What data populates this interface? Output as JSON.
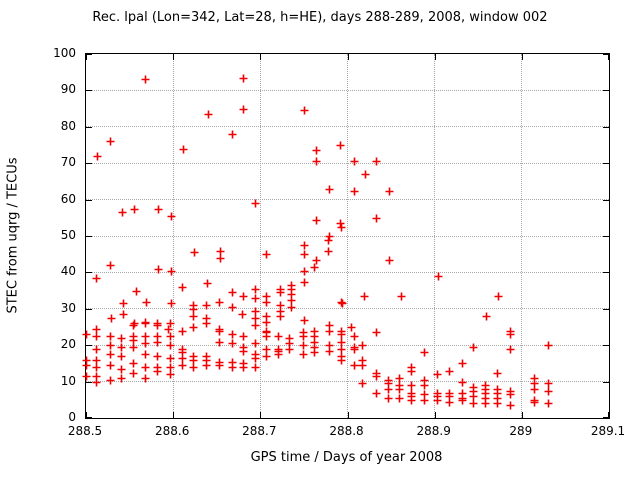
{
  "title": "Rec. lpal (Lon=342, Lat=28, h=HE), days 288-289, 2008, window 002",
  "chart_data": {
    "type": "scatter",
    "title": "Rec. lpal (Lon=342, Lat=28, h=HE), days 288-289, 2008, window 002",
    "xlabel": "GPS time / Days of year 2008",
    "ylabel": "STEC from uqrg / TECUs",
    "xlim": [
      288.5,
      289.1
    ],
    "ylim": [
      0,
      100
    ],
    "xticks": [
      288.5,
      288.6,
      288.7,
      288.8,
      288.9,
      289.0,
      289.1
    ],
    "xtick_labels": [
      "288.5",
      "288.6",
      "288.7",
      "288.8",
      "288.9",
      "289",
      "289.1"
    ],
    "yticks": [
      0,
      10,
      20,
      30,
      40,
      50,
      60,
      70,
      80,
      90,
      100
    ],
    "ytick_labels": [
      "0",
      "10",
      "20",
      "30",
      "40",
      "50",
      "60",
      "70",
      "80",
      "90",
      "100"
    ],
    "grid": true,
    "legend": false,
    "marker_shape": "plus",
    "marker_color": "#f00000",
    "grid_color": "#a8a8a8",
    "border_color": "#000000",
    "series": [
      {
        "name": "STEC",
        "points": [
          [
            288.568,
            93
          ],
          [
            288.68,
            93.5
          ],
          [
            288.75,
            84.5
          ],
          [
            288.68,
            85
          ],
          [
            288.64,
            83.5
          ],
          [
            288.667,
            78
          ],
          [
            288.528,
            76
          ],
          [
            288.611,
            74
          ],
          [
            288.513,
            72
          ],
          [
            288.791,
            75
          ],
          [
            288.764,
            73.5
          ],
          [
            288.764,
            70.5
          ],
          [
            288.807,
            70.5
          ],
          [
            288.833,
            70.5
          ],
          [
            288.82,
            67
          ],
          [
            288.779,
            63
          ],
          [
            288.807,
            62.5
          ],
          [
            288.848,
            62.5
          ],
          [
            288.541,
            56.5
          ],
          [
            288.555,
            57.5
          ],
          [
            288.583,
            57.5
          ],
          [
            288.597,
            55.5
          ],
          [
            288.694,
            59
          ],
          [
            288.764,
            54.5
          ],
          [
            288.791,
            53.5
          ],
          [
            288.792,
            52.5
          ],
          [
            288.833,
            55
          ],
          [
            288.779,
            50
          ],
          [
            288.75,
            47.5
          ],
          [
            288.75,
            45
          ],
          [
            288.707,
            45
          ],
          [
            288.848,
            43.5
          ],
          [
            288.764,
            43.5
          ],
          [
            288.778,
            49
          ],
          [
            288.778,
            46
          ],
          [
            288.761,
            41.5
          ],
          [
            288.75,
            40.5
          ],
          [
            288.75,
            37.5
          ],
          [
            288.624,
            45.5
          ],
          [
            288.654,
            46
          ],
          [
            288.654,
            44
          ],
          [
            288.528,
            42
          ],
          [
            288.511,
            38.5
          ],
          [
            288.583,
            41
          ],
          [
            288.597,
            40.5
          ],
          [
            288.557,
            35
          ],
          [
            288.61,
            36
          ],
          [
            288.639,
            37
          ],
          [
            288.542,
            31.5
          ],
          [
            288.569,
            32
          ],
          [
            288.597,
            31.5
          ],
          [
            288.542,
            28.5
          ],
          [
            288.529,
            27.5
          ],
          [
            288.555,
            26
          ],
          [
            288.568,
            26.5
          ],
          [
            288.581,
            26
          ],
          [
            288.594,
            24.5
          ],
          [
            288.623,
            31
          ],
          [
            288.623,
            30
          ],
          [
            288.638,
            31
          ],
          [
            288.653,
            32
          ],
          [
            288.667,
            34.5
          ],
          [
            288.68,
            33.5
          ],
          [
            288.694,
            35.5
          ],
          [
            288.694,
            33
          ],
          [
            288.667,
            30.5
          ],
          [
            288.679,
            28.5
          ],
          [
            288.694,
            29.5
          ],
          [
            288.694,
            27.5
          ],
          [
            288.623,
            28
          ],
          [
            288.638,
            27.5
          ],
          [
            288.904,
            39
          ],
          [
            288.973,
            33.5
          ],
          [
            288.959,
            28
          ],
          [
            288.735,
            36.5
          ],
          [
            288.735,
            35.5
          ],
          [
            288.735,
            34
          ],
          [
            288.735,
            32.5
          ],
          [
            288.722,
            35.5
          ],
          [
            288.722,
            34.5
          ],
          [
            288.706,
            33.5
          ],
          [
            288.706,
            32
          ],
          [
            288.722,
            31
          ],
          [
            288.722,
            29.5
          ],
          [
            288.735,
            30.5
          ],
          [
            288.792,
            32
          ],
          [
            288.794,
            31.5
          ],
          [
            288.819,
            33.5
          ],
          [
            288.861,
            33.5
          ],
          [
            288.706,
            28
          ],
          [
            288.722,
            28
          ],
          [
            288.706,
            26.5
          ],
          [
            288.75,
            27
          ],
          [
            288.804,
            25
          ],
          [
            288.5,
            23
          ],
          [
            288.5,
            16
          ],
          [
            288.5,
            14.5
          ],
          [
            288.5,
            11.5
          ],
          [
            288.511,
            24.5
          ],
          [
            288.511,
            22.5
          ],
          [
            288.511,
            19
          ],
          [
            288.511,
            16
          ],
          [
            288.511,
            14
          ],
          [
            288.511,
            11.5
          ],
          [
            288.511,
            10
          ],
          [
            288.527,
            22.5
          ],
          [
            288.527,
            20
          ],
          [
            288.527,
            17.5
          ],
          [
            288.527,
            14.5
          ],
          [
            288.527,
            10.5
          ],
          [
            288.54,
            22
          ],
          [
            288.54,
            19.5
          ],
          [
            288.54,
            17
          ],
          [
            288.54,
            13.5
          ],
          [
            288.54,
            11
          ],
          [
            288.554,
            25.5
          ],
          [
            288.554,
            22.5
          ],
          [
            288.554,
            21.5
          ],
          [
            288.554,
            19.5
          ],
          [
            288.554,
            15
          ],
          [
            288.554,
            12.5
          ],
          [
            288.568,
            26
          ],
          [
            288.568,
            22.5
          ],
          [
            288.568,
            20.5
          ],
          [
            288.568,
            17.5
          ],
          [
            288.568,
            14
          ],
          [
            288.568,
            11
          ],
          [
            288.581,
            25.5
          ],
          [
            288.581,
            22.5
          ],
          [
            288.581,
            21
          ],
          [
            288.581,
            17
          ],
          [
            288.581,
            14
          ],
          [
            288.581,
            13
          ],
          [
            288.596,
            26
          ],
          [
            288.596,
            22.5
          ],
          [
            288.596,
            20
          ],
          [
            288.596,
            16.5
          ],
          [
            288.596,
            14
          ],
          [
            288.596,
            12
          ],
          [
            288.61,
            24
          ],
          [
            288.61,
            19
          ],
          [
            288.61,
            18
          ],
          [
            288.61,
            16.5
          ],
          [
            288.61,
            14.5
          ],
          [
            288.623,
            25
          ],
          [
            288.623,
            17
          ],
          [
            288.623,
            16
          ],
          [
            288.623,
            14
          ],
          [
            288.638,
            26
          ],
          [
            288.638,
            17
          ],
          [
            288.638,
            16
          ],
          [
            288.638,
            14.5
          ],
          [
            288.653,
            24.5
          ],
          [
            288.653,
            24
          ],
          [
            288.653,
            21
          ],
          [
            288.653,
            15.5
          ],
          [
            288.653,
            14.5
          ],
          [
            288.667,
            23
          ],
          [
            288.667,
            20.5
          ],
          [
            288.667,
            15.5
          ],
          [
            288.667,
            14
          ],
          [
            288.68,
            22.5
          ],
          [
            288.68,
            19.5
          ],
          [
            288.68,
            18.5
          ],
          [
            288.68,
            15
          ],
          [
            288.68,
            14
          ],
          [
            288.694,
            25.5
          ],
          [
            288.694,
            20.5
          ],
          [
            288.694,
            17.5
          ],
          [
            288.694,
            16.5
          ],
          [
            288.694,
            14
          ],
          [
            288.706,
            24
          ],
          [
            288.706,
            23.5
          ],
          [
            288.706,
            22.5
          ],
          [
            288.706,
            19
          ],
          [
            288.706,
            17
          ],
          [
            288.72,
            22.5
          ],
          [
            288.72,
            19
          ],
          [
            288.72,
            18.5
          ],
          [
            288.72,
            17.5
          ],
          [
            288.733,
            22
          ],
          [
            288.733,
            20.5
          ],
          [
            288.733,
            19
          ],
          [
            288.749,
            23.5
          ],
          [
            288.749,
            22.5
          ],
          [
            288.749,
            20
          ],
          [
            288.749,
            17.5
          ],
          [
            288.762,
            24
          ],
          [
            288.762,
            22.5
          ],
          [
            288.762,
            21
          ],
          [
            288.762,
            19.5
          ],
          [
            288.762,
            18
          ],
          [
            288.779,
            25.5
          ],
          [
            288.779,
            24
          ],
          [
            288.779,
            20
          ],
          [
            288.779,
            18.5
          ],
          [
            288.792,
            24
          ],
          [
            288.792,
            23
          ],
          [
            288.792,
            21
          ],
          [
            288.792,
            19
          ],
          [
            288.792,
            17
          ],
          [
            288.792,
            16
          ],
          [
            288.807,
            22.5
          ],
          [
            288.807,
            19.5
          ],
          [
            288.807,
            19
          ],
          [
            288.807,
            14.5
          ],
          [
            288.817,
            20
          ],
          [
            288.817,
            16
          ],
          [
            288.817,
            14.5
          ],
          [
            288.817,
            9.5
          ],
          [
            288.833,
            23.5
          ],
          [
            288.833,
            12.5
          ],
          [
            288.833,
            11.5
          ],
          [
            288.833,
            7
          ],
          [
            288.846,
            10.5
          ],
          [
            288.846,
            9.5
          ],
          [
            288.846,
            8
          ],
          [
            288.846,
            5.5
          ],
          [
            288.859,
            11
          ],
          [
            288.859,
            9
          ],
          [
            288.859,
            8
          ],
          [
            288.859,
            5.5
          ],
          [
            288.873,
            14
          ],
          [
            288.873,
            13
          ],
          [
            288.873,
            9
          ],
          [
            288.873,
            7
          ],
          [
            288.873,
            6
          ],
          [
            288.873,
            5
          ],
          [
            288.888,
            18
          ],
          [
            288.888,
            10.5
          ],
          [
            288.888,
            9
          ],
          [
            288.888,
            6.5
          ],
          [
            288.888,
            5
          ],
          [
            288.903,
            12
          ],
          [
            288.903,
            7
          ],
          [
            288.903,
            6
          ],
          [
            288.903,
            5
          ],
          [
            288.917,
            13
          ],
          [
            288.917,
            7
          ],
          [
            288.917,
            6
          ],
          [
            288.917,
            4.5
          ],
          [
            288.931,
            15
          ],
          [
            288.931,
            10
          ],
          [
            288.931,
            7
          ],
          [
            288.931,
            5.5
          ],
          [
            288.931,
            5
          ],
          [
            288.944,
            19.5
          ],
          [
            288.944,
            8.5
          ],
          [
            288.944,
            7.5
          ],
          [
            288.944,
            6
          ],
          [
            288.944,
            4
          ],
          [
            288.958,
            9
          ],
          [
            288.958,
            8
          ],
          [
            288.958,
            7
          ],
          [
            288.958,
            5.5
          ],
          [
            288.958,
            4
          ],
          [
            288.972,
            12.5
          ],
          [
            288.972,
            8
          ],
          [
            288.972,
            7
          ],
          [
            288.972,
            5.5
          ],
          [
            288.972,
            4
          ],
          [
            288.986,
            24
          ],
          [
            288.986,
            23
          ],
          [
            288.986,
            19
          ],
          [
            288.986,
            7.5
          ],
          [
            288.986,
            6.5
          ],
          [
            288.986,
            3.5
          ],
          [
            289.014,
            11
          ],
          [
            289.014,
            9.5
          ],
          [
            289.014,
            8
          ],
          [
            289.014,
            5
          ],
          [
            289.014,
            4.5
          ],
          [
            289.03,
            20
          ],
          [
            289.03,
            9.5
          ],
          [
            289.03,
            7.5
          ],
          [
            289.03,
            4
          ]
        ]
      }
    ]
  }
}
